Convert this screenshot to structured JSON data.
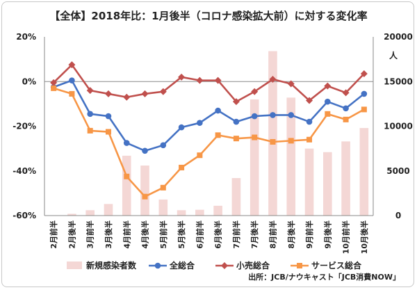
{
  "chart_data": {
    "type": "line",
    "title": "【全体】2018年比：1月後半（コロナ感染拡大前）に対する変化率",
    "categories": [
      "2月前半",
      "2月後半",
      "3月前半",
      "3月後半",
      "4月前半",
      "4月後半",
      "5月前半",
      "5月後半",
      "6月前半",
      "6月後半",
      "7月前半",
      "7月後半",
      "8月前半",
      "8月後半",
      "9月前半",
      "9月後半",
      "10月前半",
      "10月後半"
    ],
    "y_left": {
      "ylim": [
        -60,
        20
      ],
      "ticks": [
        "20%",
        "0%",
        "-20%",
        "-40%",
        "-60%"
      ],
      "tick_values": [
        20,
        0,
        -20,
        -40,
        -60
      ]
    },
    "y_right": {
      "label": "人",
      "ylim": [
        0,
        20000
      ],
      "ticks": [
        "20000",
        "15000",
        "10000",
        "5000",
        "0"
      ],
      "tick_values": [
        20000,
        15000,
        10000,
        5000,
        0
      ]
    },
    "bar_series": {
      "name": "新規感染者数",
      "color": "#f4d7d5",
      "axis": "right",
      "values": [
        30,
        200,
        600,
        1300,
        6700,
        5600,
        1800,
        600,
        650,
        1100,
        4200,
        13000,
        18400,
        13200,
        7500,
        7100,
        8300,
        9800
      ]
    },
    "series": [
      {
        "name": "全総合",
        "color": "#4472c4",
        "axis": "left",
        "values": [
          -2.5,
          0.5,
          -14.5,
          -15.5,
          -27.5,
          -31,
          -28.5,
          -20.5,
          -18.5,
          -13,
          -18,
          -15.5,
          -15,
          -15,
          -18,
          -9,
          -12,
          -5.5
        ]
      },
      {
        "name": "小売総合",
        "color": "#c0504d",
        "axis": "left",
        "values": [
          -0.5,
          7.5,
          -4,
          -5.5,
          -7,
          -5.5,
          -4.5,
          2,
          0.5,
          0.5,
          -9,
          -4.5,
          1,
          -1,
          -8.5,
          -2,
          -5,
          3.5
        ]
      },
      {
        "name": "サービス総合",
        "color": "#f79646",
        "axis": "left",
        "values": [
          -3,
          -5.5,
          -22,
          -22.5,
          -42.5,
          -51.5,
          -47.5,
          -38.5,
          -33,
          -24,
          -25.5,
          -25,
          -27,
          -26.5,
          -26,
          -14.5,
          -17,
          -12.5
        ]
      }
    ],
    "legend": [
      "新規感染者数",
      "全総合",
      "小売総合",
      "サービス総合"
    ],
    "legend_position": "bottom",
    "grid": false
  },
  "source": "出所：JCB/ナウキャスト「JCB消費NOW」"
}
